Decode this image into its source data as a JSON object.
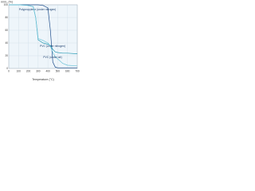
{
  "chart_data": {
    "type": "line",
    "x_label": "Temperature (°C)",
    "y_label": "m/m₀ (%)",
    "x": [
      0,
      100,
      200,
      250,
      275,
      300,
      350,
      400,
      425,
      450,
      475,
      500,
      550,
      600,
      700
    ],
    "series": [
      {
        "name": "Polypropylene (under nitrogen)",
        "color": "#1f4e8c",
        "values": [
          100,
          100,
          100,
          100,
          100,
          100,
          99,
          95,
          60,
          10,
          2,
          1,
          1,
          1,
          1
        ]
      },
      {
        "name": "PVC (under nitrogen)",
        "color": "#2a9bb5",
        "values": [
          100,
          100,
          99,
          97,
          80,
          45,
          40,
          38,
          36,
          30,
          26,
          25,
          24,
          24,
          23
        ]
      },
      {
        "name": "PVC (under air)",
        "color": "#6cc3d8",
        "values": [
          100,
          100,
          99,
          97,
          80,
          47,
          44,
          40,
          35,
          25,
          18,
          15,
          8,
          5,
          4
        ]
      }
    ],
    "xlim": [
      0,
      700
    ],
    "xticks": [
      0,
      100,
      200,
      300,
      400,
      500,
      600,
      700
    ],
    "ylim": [
      0,
      100
    ],
    "yticks": [
      0,
      20,
      40,
      60,
      80,
      100
    ],
    "grid": true
  }
}
